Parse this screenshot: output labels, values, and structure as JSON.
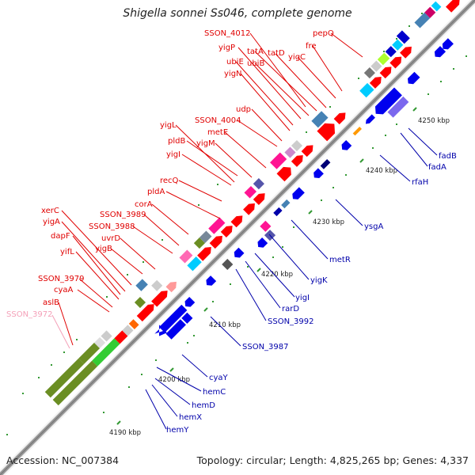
{
  "title": "Shigella sonnei Ss046, complete genome",
  "footer": {
    "accession": "Accession: NC_007384",
    "info": "Topology: circular; Length: 4,825,265 bp; Genes: 4,337"
  },
  "ticks": [
    {
      "label": "4190 kbp"
    },
    {
      "label": "4200 kbp"
    },
    {
      "label": "4210 kbp"
    },
    {
      "label": "4220 kbp"
    },
    {
      "label": "4230 kbp"
    },
    {
      "label": "4240 kbp"
    },
    {
      "label": "4250 kbp"
    }
  ],
  "red_labels": [
    "SSON_4012",
    "pepQ",
    "yigP",
    "tatA",
    "tatD",
    "fre",
    "ubiE",
    "ubiB",
    "yigC",
    "yigN",
    "udp",
    "SSON_4004",
    "yigL",
    "metE",
    "pldB",
    "yigM",
    "yigI",
    "recQ",
    "pldA",
    "corA",
    "xerC",
    "SSON_3989",
    "yigA",
    "SSON_3988",
    "dapF",
    "uvrD",
    "yifL",
    "yigB",
    "SSON_3979",
    "cyaA",
    "aslB"
  ],
  "pink_labels": [
    "SSON_3972"
  ],
  "blue_labels": [
    "fadB",
    "fadA",
    "rfaH",
    "ysgA",
    "metR",
    "yigK",
    "yigI",
    "rarD",
    "SSON_3992",
    "SSON_3987",
    "cyaY",
    "hemC",
    "hemD",
    "hemX",
    "hemY"
  ],
  "colors": {
    "forward_strand": "#ff0000",
    "reverse_strand": "#0000ee",
    "backbone": "#999999",
    "label_forward": "#e00000",
    "label_reverse": "#0000aa",
    "label_pseudo": "#f4a0b8"
  }
}
